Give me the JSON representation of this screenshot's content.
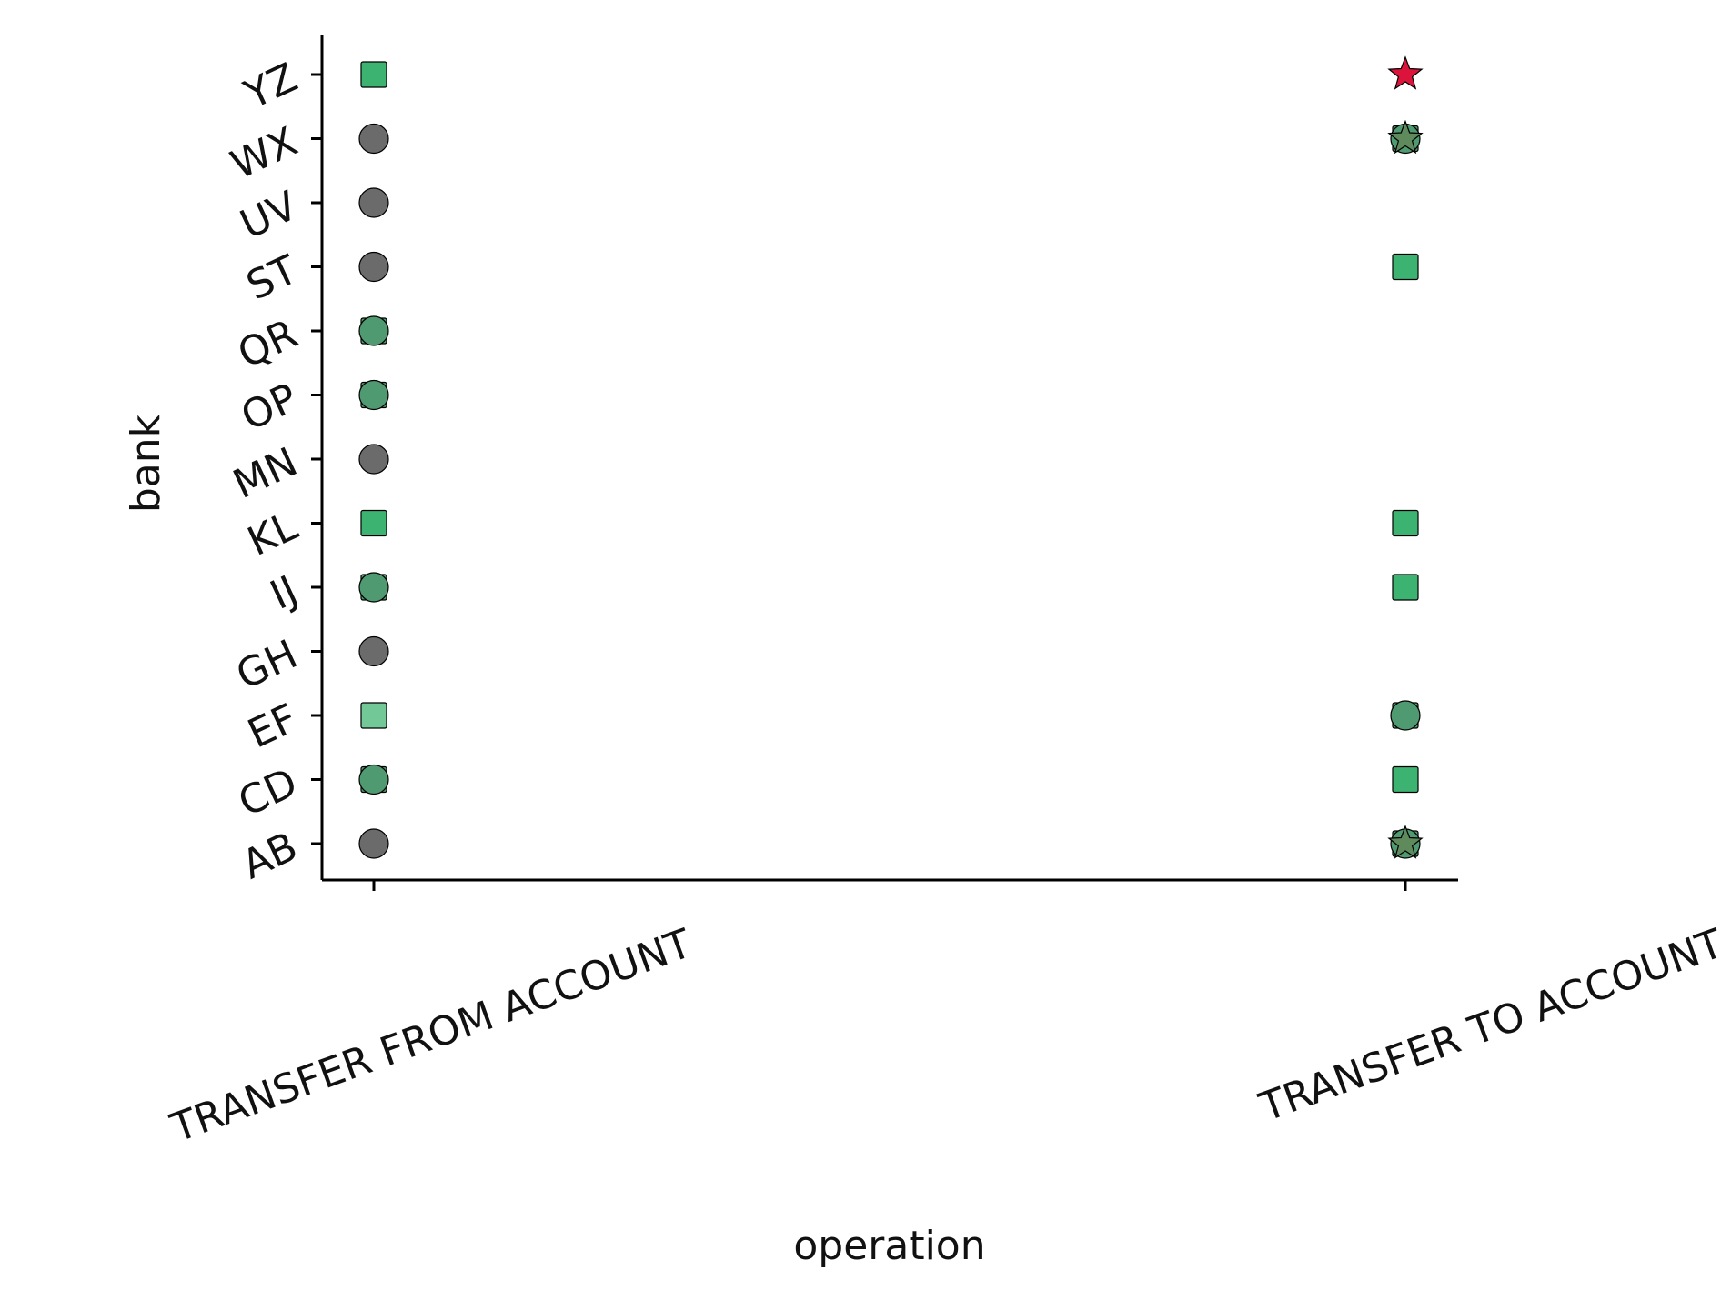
{
  "chart_data": {
    "type": "scatter",
    "xlabel": "operation",
    "ylabel": "bank",
    "title": "",
    "x_categories": [
      "TRANSFER FROM ACCOUNT",
      "TRANSFER TO ACCOUNT"
    ],
    "y_categories": [
      "AB",
      "CD",
      "EF",
      "GH",
      "IJ",
      "KL",
      "MN",
      "OP",
      "QR",
      "ST",
      "UV",
      "WX",
      "YZ"
    ],
    "grid": false,
    "legend": "none",
    "points": [
      {
        "x": "TRANSFER FROM ACCOUNT",
        "y": "YZ",
        "marker": "square",
        "color": "#3cb371"
      },
      {
        "x": "TRANSFER FROM ACCOUNT",
        "y": "WX",
        "marker": "circle",
        "color": "#6b6b6b"
      },
      {
        "x": "TRANSFER FROM ACCOUNT",
        "y": "UV",
        "marker": "circle",
        "color": "#6b6b6b"
      },
      {
        "x": "TRANSFER FROM ACCOUNT",
        "y": "ST",
        "marker": "circle",
        "color": "#6b6b6b"
      },
      {
        "x": "TRANSFER FROM ACCOUNT",
        "y": "QR",
        "marker": "square",
        "color": "#4f9a70"
      },
      {
        "x": "TRANSFER FROM ACCOUNT",
        "y": "QR",
        "marker": "circle",
        "color": "#4f9a70"
      },
      {
        "x": "TRANSFER FROM ACCOUNT",
        "y": "OP",
        "marker": "square",
        "color": "#4f9a70"
      },
      {
        "x": "TRANSFER FROM ACCOUNT",
        "y": "OP",
        "marker": "circle",
        "color": "#4f9a70"
      },
      {
        "x": "TRANSFER FROM ACCOUNT",
        "y": "MN",
        "marker": "circle",
        "color": "#6b6b6b"
      },
      {
        "x": "TRANSFER FROM ACCOUNT",
        "y": "KL",
        "marker": "square",
        "color": "#3cb371"
      },
      {
        "x": "TRANSFER FROM ACCOUNT",
        "y": "IJ",
        "marker": "square",
        "color": "#4f9a70"
      },
      {
        "x": "TRANSFER FROM ACCOUNT",
        "y": "IJ",
        "marker": "circle",
        "color": "#4f9a70"
      },
      {
        "x": "TRANSFER FROM ACCOUNT",
        "y": "GH",
        "marker": "circle",
        "color": "#6b6b6b"
      },
      {
        "x": "TRANSFER FROM ACCOUNT",
        "y": "EF",
        "marker": "square",
        "color": "#72c896"
      },
      {
        "x": "TRANSFER FROM ACCOUNT",
        "y": "CD",
        "marker": "square",
        "color": "#4f9a70"
      },
      {
        "x": "TRANSFER FROM ACCOUNT",
        "y": "CD",
        "marker": "circle",
        "color": "#4f9a70"
      },
      {
        "x": "TRANSFER FROM ACCOUNT",
        "y": "AB",
        "marker": "circle",
        "color": "#6b6b6b"
      },
      {
        "x": "TRANSFER TO ACCOUNT",
        "y": "YZ",
        "marker": "star",
        "color": "#dc143c"
      },
      {
        "x": "TRANSFER TO ACCOUNT",
        "y": "WX",
        "marker": "square",
        "color": "#4f9a70"
      },
      {
        "x": "TRANSFER TO ACCOUNT",
        "y": "WX",
        "marker": "circle",
        "color": "#4f9a70"
      },
      {
        "x": "TRANSFER TO ACCOUNT",
        "y": "WX",
        "marker": "star",
        "color": "#5e8a5c"
      },
      {
        "x": "TRANSFER TO ACCOUNT",
        "y": "ST",
        "marker": "square",
        "color": "#3cb371"
      },
      {
        "x": "TRANSFER TO ACCOUNT",
        "y": "KL",
        "marker": "square",
        "color": "#3cb371"
      },
      {
        "x": "TRANSFER TO ACCOUNT",
        "y": "IJ",
        "marker": "square",
        "color": "#3cb371"
      },
      {
        "x": "TRANSFER TO ACCOUNT",
        "y": "EF",
        "marker": "square",
        "color": "#4f9a70"
      },
      {
        "x": "TRANSFER TO ACCOUNT",
        "y": "EF",
        "marker": "circle",
        "color": "#4f9a70"
      },
      {
        "x": "TRANSFER TO ACCOUNT",
        "y": "CD",
        "marker": "square",
        "color": "#3cb371"
      },
      {
        "x": "TRANSFER TO ACCOUNT",
        "y": "AB",
        "marker": "square",
        "color": "#4f9a70"
      },
      {
        "x": "TRANSFER TO ACCOUNT",
        "y": "AB",
        "marker": "circle",
        "color": "#4f9a70"
      },
      {
        "x": "TRANSFER TO ACCOUNT",
        "y": "AB",
        "marker": "star",
        "color": "#5e8a5c"
      }
    ]
  }
}
